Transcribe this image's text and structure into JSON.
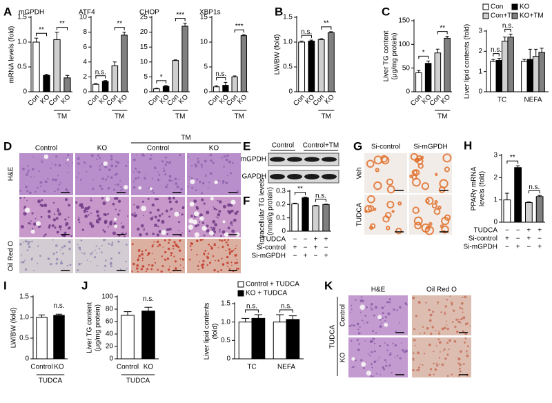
{
  "chart_data": [
    {
      "type": "bar",
      "panel": "A",
      "title": "mGPDH",
      "ylabel": "mRNA levels (fold)",
      "categories": [
        "Con",
        "KO",
        "Con",
        "KO"
      ],
      "group": "TM",
      "values": [
        1.0,
        0.33,
        1.05,
        0.28
      ],
      "errors": [
        0.08,
        0.02,
        0.15,
        0.05
      ],
      "colors": [
        "#ffffff",
        "#000000",
        "#d0d0d0",
        "#808080"
      ],
      "ylim": [
        0,
        1.5
      ],
      "yticks": [
        0,
        0.5,
        {
          "value": 1,
          "label": "1.0"
        },
        1.5
      ],
      "annotations": [
        "**",
        "**"
      ]
    },
    {
      "type": "bar",
      "title": "ATF4",
      "categories": [
        "Con",
        "KO",
        "Con",
        "KO"
      ],
      "group": "TM",
      "values": [
        1.0,
        1.4,
        3.5,
        7.6
      ],
      "errors": [
        0.1,
        0.1,
        0.5,
        0.4
      ],
      "colors": [
        "#ffffff",
        "#000000",
        "#d0d0d0",
        "#808080"
      ],
      "ylim": [
        0,
        10
      ],
      "yticks": [
        0,
        2,
        4,
        6,
        8,
        10
      ],
      "annotations": [
        "n.s.",
        "**"
      ]
    },
    {
      "type": "bar",
      "title": "CHOP",
      "categories": [
        "Con",
        "KO",
        "Con",
        "KO"
      ],
      "group": "TM",
      "values": [
        1.0,
        1.8,
        10.5,
        22.0
      ],
      "errors": [
        0.2,
        0.3,
        0.2,
        1.0
      ],
      "colors": [
        "#ffffff",
        "#000000",
        "#d0d0d0",
        "#808080"
      ],
      "ylim": [
        0,
        25
      ],
      "yticks": [
        0,
        5,
        10,
        15,
        20,
        25
      ],
      "annotations": [
        "*",
        "***"
      ]
    },
    {
      "type": "bar",
      "title": "XBP1s",
      "categories": [
        "Con",
        "KO",
        "Con",
        "KO"
      ],
      "group": "TM",
      "values": [
        1.0,
        1.3,
        3.0,
        11.3
      ],
      "errors": [
        0.2,
        0.6,
        0.2,
        0.2
      ],
      "colors": [
        "#ffffff",
        "#000000",
        "#d0d0d0",
        "#808080"
      ],
      "ylim": [
        0,
        15
      ],
      "yticks": [
        0,
        5,
        10,
        15
      ],
      "annotations": [
        "n.s.",
        "***"
      ]
    },
    {
      "type": "bar",
      "panel": "B",
      "ylabel": "LW/BW (fold)",
      "categories": [
        "Con",
        "KO",
        "Con",
        "KO"
      ],
      "group": "TM",
      "values": [
        1.0,
        1.02,
        1.05,
        1.19
      ],
      "errors": [
        0.02,
        0.02,
        0.02,
        0.02
      ],
      "colors": [
        "#ffffff",
        "#000000",
        "#d0d0d0",
        "#808080"
      ],
      "ylim": [
        0,
        1.5
      ],
      "yticks": [
        0,
        0.5,
        {
          "value": 1,
          "label": "1.0"
        },
        1.5
      ],
      "annotations": [
        "n.s.",
        "**"
      ]
    },
    {
      "type": "bar",
      "panel": "C",
      "ylabel": [
        "Liver TG content",
        "(μg/mg protein)"
      ],
      "categories": [
        "Con",
        "KO",
        "Con",
        "KO"
      ],
      "group": "TM",
      "values": [
        40,
        60,
        82,
        113
      ],
      "errors": [
        5,
        5,
        8,
        4
      ],
      "colors": [
        "#ffffff",
        "#000000",
        "#d0d0d0",
        "#808080"
      ],
      "ylim": [
        0,
        150
      ],
      "yticks": [
        0,
        50,
        100,
        150
      ],
      "annotations": [
        "*",
        "**"
      ]
    },
    {
      "type": "grouped-bar",
      "ylabel": "Liver lipid contents (fold)",
      "categories": [
        "TC",
        "NEFA"
      ],
      "series": [
        {
          "name": "Con",
          "color": "#ffffff",
          "values": [
            1.5,
            1.5
          ],
          "errors": [
            0.1,
            0.1
          ]
        },
        {
          "name": "KO",
          "color": "#000000",
          "values": [
            1.55,
            1.6
          ],
          "errors": [
            0.1,
            0.5
          ]
        },
        {
          "name": "Con+TM",
          "color": "#d0d0d0",
          "values": [
            2.5,
            1.75
          ],
          "errors": [
            0.2,
            0.35
          ]
        },
        {
          "name": "KO+TM",
          "color": "#808080",
          "values": [
            2.7,
            1.95
          ],
          "errors": [
            0.15,
            0.2
          ]
        }
      ],
      "ylim": [
        0,
        3
      ],
      "yticks": [
        0,
        1,
        2,
        3
      ],
      "annotations": [
        "n.s.",
        "n.s."
      ]
    },
    {
      "type": "bar",
      "panel": "F",
      "ylabel": [
        "Intracellular TG levels",
        "(nmol/g protein)"
      ],
      "values": [
        0.205,
        0.25,
        0.19,
        0.2
      ],
      "errors": [
        0.005,
        0.005,
        0.003,
        0.003
      ],
      "colors": [
        "#ffffff",
        "#000000",
        "#d0d0d0",
        "#808080"
      ],
      "ylim": [
        0,
        0.3
      ],
      "yticks": [
        0,
        0.1,
        0.2,
        0.3
      ],
      "annotations": [
        "**",
        "n.s."
      ],
      "conditions": [
        {
          "label": "TUDCA",
          "signs": [
            "−",
            "−",
            "+",
            "+"
          ]
        },
        {
          "label": "Si-control",
          "signs": [
            "+",
            "−",
            "+",
            "−"
          ]
        },
        {
          "label": "Si-mGPDH",
          "signs": [
            "−",
            "+",
            "−",
            "+"
          ]
        }
      ]
    },
    {
      "type": "bar",
      "panel": "H",
      "ylabel": [
        "PPARγ mRNA",
        "levels (fold)"
      ],
      "values": [
        1.0,
        2.45,
        0.88,
        1.15
      ],
      "errors": [
        0.3,
        0.08,
        0.03,
        0.05
      ],
      "colors": [
        "#ffffff",
        "#000000",
        "#d0d0d0",
        "#808080"
      ],
      "ylim": [
        0,
        3
      ],
      "yticks": [
        0,
        1,
        2,
        3
      ],
      "annotations": [
        "**",
        "n.s."
      ],
      "conditions": [
        {
          "label": "TUDCA",
          "signs": [
            "−",
            "−",
            "+",
            "+"
          ]
        },
        {
          "label": "Si-control",
          "signs": [
            "+",
            "−",
            "+",
            "−"
          ]
        },
        {
          "label": "Si-mGPDH",
          "signs": [
            "−",
            "+",
            "−",
            "+"
          ]
        }
      ]
    },
    {
      "type": "bar",
      "panel": "I",
      "ylabel": "LW/BW (fold)",
      "categories": [
        "Control",
        "KO"
      ],
      "group": "TUDCA",
      "values": [
        1.0,
        1.05
      ],
      "errors": [
        0.06,
        0.03
      ],
      "colors": [
        "#ffffff",
        "#000000"
      ],
      "ylim": [
        0,
        1.5
      ],
      "yticks": [
        0,
        0.5,
        {
          "value": 1,
          "label": "1.0"
        },
        1.5
      ],
      "annotations": [
        "n.s."
      ]
    },
    {
      "type": "bar",
      "panel": "J",
      "ylabel": [
        "Liver TG content",
        "(μg/mg protein)"
      ],
      "categories": [
        "Control",
        "KO"
      ],
      "group": "TUDCA",
      "values": [
        70,
        77
      ],
      "errors": [
        6,
        6
      ],
      "colors": [
        "#ffffff",
        "#000000"
      ],
      "ylim": [
        0,
        100
      ],
      "yticks": [
        0,
        20,
        40,
        60,
        80,
        100
      ],
      "annotations": [
        "n.s."
      ]
    },
    {
      "type": "grouped-bar",
      "ylabel": [
        "Liver lipid contents",
        "(fold)"
      ],
      "categories": [
        "TC",
        "NEFA"
      ],
      "series": [
        {
          "name": "Control + TUDCA",
          "color": "#ffffff",
          "values": [
            1.0,
            1.0
          ],
          "errors": [
            0.1,
            0.2
          ]
        },
        {
          "name": "KO + TUDCA",
          "color": "#000000",
          "values": [
            1.1,
            1.07
          ],
          "errors": [
            0.1,
            0.1
          ]
        }
      ],
      "ylim": [
        0,
        1.5
      ],
      "yticks": [
        0,
        0.5,
        {
          "value": 1,
          "label": "1.0"
        },
        1.5
      ],
      "annotations": [
        "n.s.",
        "n.s."
      ]
    }
  ],
  "histology_D": {
    "panel": "D",
    "group": "TM",
    "columns": [
      "Control",
      "KO",
      "Control",
      "KO"
    ],
    "rows": [
      "H&E",
      "Oil Red O"
    ]
  },
  "blot_E": {
    "panel": "E",
    "columns": [
      "Control",
      "Control+TM"
    ],
    "rows": [
      "mGPDH",
      "GAPDH"
    ]
  },
  "staining_G": {
    "panel": "G",
    "columns": [
      "Si-control",
      "Si-mGPDH"
    ],
    "rows": [
      "Veh",
      "TUDCA"
    ]
  },
  "histology_K": {
    "panel": "K",
    "group": "TUDCA",
    "columns": [
      "H&E",
      "Oil Red O"
    ],
    "rows": [
      "Control",
      "KO"
    ]
  }
}
